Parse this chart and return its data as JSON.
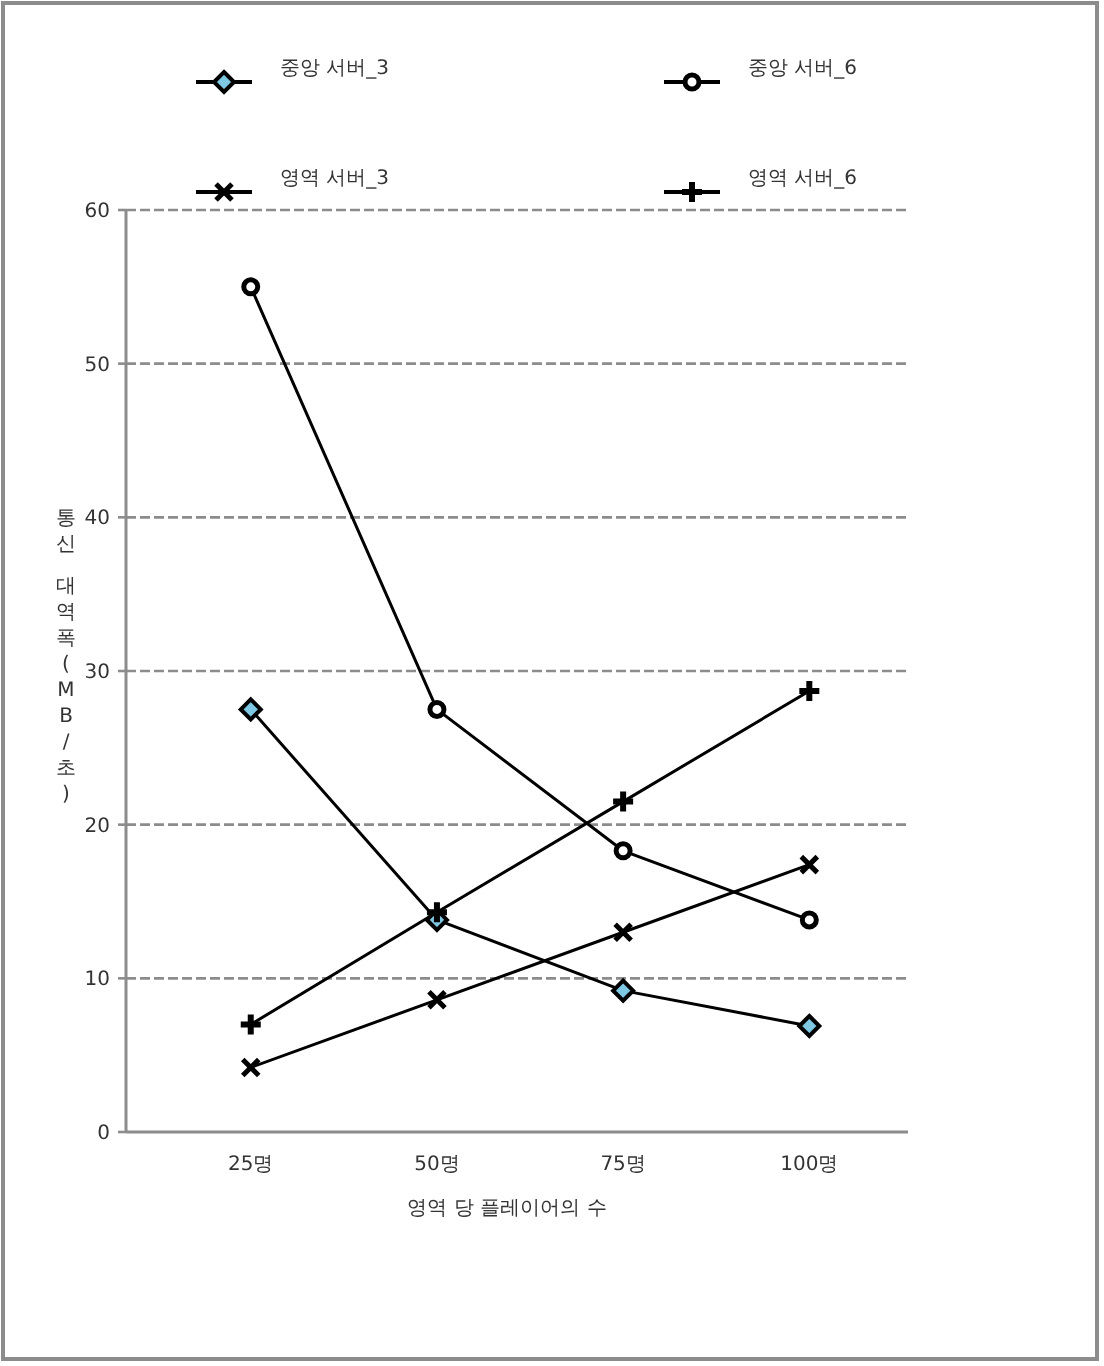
{
  "chart_data": {
    "type": "line",
    "categories": [
      "25명",
      "50명",
      "75명",
      "100명"
    ],
    "xlabel": "영역 당 플레이어의 수",
    "ylabel": "통신 대역폭(MB/초)",
    "ylim": [
      0,
      60
    ],
    "yticks": [
      0,
      10,
      20,
      30,
      40,
      50,
      60
    ],
    "grid": "y",
    "legend": "top",
    "series": [
      {
        "name": "중앙 서버_3",
        "color": "#000000",
        "marker": "diamond",
        "values": [
          27.5,
          13.8,
          9.2,
          6.9
        ]
      },
      {
        "name": "중앙 서버_6",
        "color": "#000000",
        "marker": "circle",
        "values": [
          55,
          27.5,
          18.3,
          13.8
        ]
      },
      {
        "name": "영역 서버_3",
        "color": "#000000",
        "marker": "cross",
        "values": [
          4.2,
          8.6,
          13.0,
          17.4
        ]
      },
      {
        "name": "영역 서버_6",
        "color": "#000000",
        "marker": "plus",
        "values": [
          7.0,
          14.3,
          21.5,
          28.7
        ]
      }
    ]
  }
}
